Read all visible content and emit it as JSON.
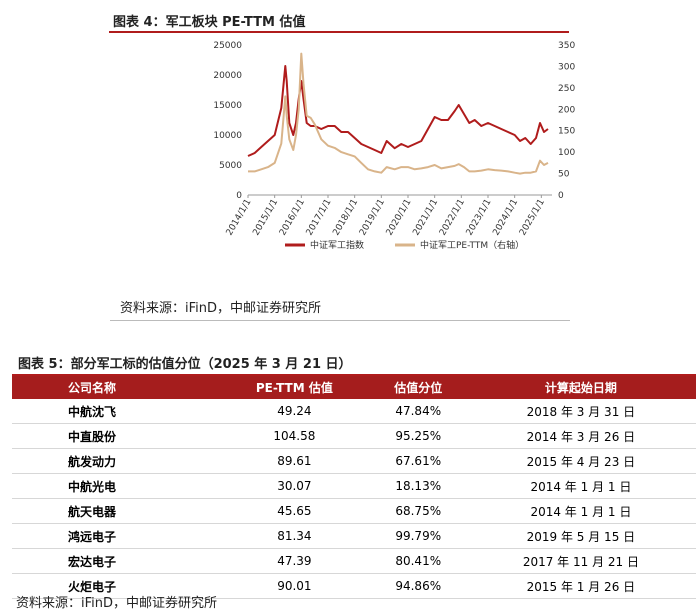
{
  "figure4": {
    "title": "图表 4：军工板块 PE-TTM 估值",
    "source": "资料来源：iFinD，中邮证券研究所"
  },
  "chart_data": {
    "type": "line",
    "colors": {
      "index": "#b01c1c",
      "pe": "#d9b48a"
    },
    "left_axis": {
      "ylim": [
        0,
        25000
      ],
      "ticks": [
        "0",
        "5000",
        "10000",
        "15000",
        "20000",
        "25000"
      ]
    },
    "right_axis": {
      "ylim": [
        0,
        350
      ],
      "ticks": [
        "0",
        "50",
        "100",
        "150",
        "200",
        "250",
        "300",
        "350"
      ]
    },
    "x_ticks": [
      "2014/1/1",
      "2015/1/1",
      "2016/1/1",
      "2017/1/1",
      "2018/1/1",
      "2019/1/1",
      "2020/1/1",
      "2021/1/1",
      "2022/1/1",
      "2023/1/1",
      "2024/1/1",
      "2025/1/1"
    ],
    "series": [
      {
        "name": "中证军工指数",
        "axis": "left",
        "x": [
          2014.0,
          2014.25,
          2014.5,
          2014.75,
          2015.0,
          2015.25,
          2015.4,
          2015.45,
          2015.55,
          2015.7,
          2015.8,
          2015.9,
          2016.0,
          2016.08,
          2016.2,
          2016.35,
          2016.5,
          2016.75,
          2017.0,
          2017.25,
          2017.5,
          2017.75,
          2018.0,
          2018.25,
          2018.5,
          2018.75,
          2019.0,
          2019.2,
          2019.5,
          2019.75,
          2020.0,
          2020.25,
          2020.5,
          2020.75,
          2021.0,
          2021.25,
          2021.5,
          2021.75,
          2021.9,
          2022.1,
          2022.3,
          2022.5,
          2022.75,
          2023.0,
          2023.25,
          2023.5,
          2023.75,
          2024.0,
          2024.2,
          2024.4,
          2024.6,
          2024.8,
          2024.95,
          2025.1,
          2025.25
        ],
        "values": [
          6500,
          7000,
          8000,
          9000,
          10000,
          14500,
          21500,
          19000,
          12000,
          10000,
          12000,
          16000,
          19000,
          16000,
          12000,
          11500,
          11500,
          11000,
          11500,
          11500,
          10500,
          10500,
          9500,
          8500,
          8000,
          7500,
          7000,
          9000,
          7800,
          8500,
          8000,
          8500,
          9000,
          11000,
          13000,
          12500,
          12500,
          14000,
          15000,
          13500,
          12000,
          12500,
          11500,
          12000,
          11500,
          11000,
          10500,
          10000,
          9000,
          9500,
          8500,
          9500,
          12000,
          10500,
          11000
        ]
      },
      {
        "name": "中证军工PE-TTM（右轴）",
        "axis": "right",
        "x": [
          2014.0,
          2014.25,
          2014.5,
          2014.75,
          2015.0,
          2015.25,
          2015.4,
          2015.45,
          2015.55,
          2015.7,
          2015.8,
          2015.9,
          2016.0,
          2016.08,
          2016.2,
          2016.35,
          2016.5,
          2016.75,
          2017.0,
          2017.25,
          2017.5,
          2017.75,
          2018.0,
          2018.25,
          2018.5,
          2018.75,
          2019.0,
          2019.2,
          2019.5,
          2019.75,
          2020.0,
          2020.25,
          2020.5,
          2020.75,
          2021.0,
          2021.25,
          2021.5,
          2021.75,
          2021.9,
          2022.1,
          2022.3,
          2022.5,
          2022.75,
          2023.0,
          2023.25,
          2023.5,
          2023.75,
          2024.0,
          2024.2,
          2024.4,
          2024.6,
          2024.8,
          2024.95,
          2025.1,
          2025.25
        ],
        "values": [
          55,
          55,
          60,
          65,
          75,
          120,
          230,
          185,
          130,
          105,
          140,
          200,
          330,
          260,
          185,
          180,
          165,
          130,
          115,
          110,
          100,
          95,
          90,
          75,
          60,
          55,
          52,
          65,
          60,
          65,
          65,
          60,
          62,
          65,
          70,
          62,
          65,
          68,
          72,
          65,
          55,
          55,
          57,
          60,
          58,
          57,
          55,
          52,
          50,
          52,
          52,
          55,
          80,
          70,
          75
        ]
      }
    ]
  },
  "table": {
    "title": "图表 5：部分军工标的估值分位（2025 年 3 月 21 日）",
    "headers": [
      "公司名称",
      "PE-TTM 估值",
      "估值分位",
      "计算起始日期"
    ],
    "rows": [
      [
        "中航沈飞",
        "49.24",
        "47.84%",
        "2018 年 3 月 31 日"
      ],
      [
        "中直股份",
        "104.58",
        "95.25%",
        "2014 年 3 月 26 日"
      ],
      [
        "航发动力",
        "89.61",
        "67.61%",
        "2015 年 4 月 23 日"
      ],
      [
        "中航光电",
        "30.07",
        "18.13%",
        "2014 年 1 月 1 日"
      ],
      [
        "航天电器",
        "45.65",
        "68.75%",
        "2014 年 1 月 1 日"
      ],
      [
        "鸿远电子",
        "81.34",
        "99.79%",
        "2019 年 5 月 15 日"
      ],
      [
        "宏达电子",
        "47.39",
        "80.41%",
        "2017 年 11 月 21 日"
      ],
      [
        "火炬电子",
        "90.01",
        "94.86%",
        "2015 年 1 月 26 日"
      ]
    ],
    "source": "资料来源：iFinD，中邮证券研究所"
  }
}
